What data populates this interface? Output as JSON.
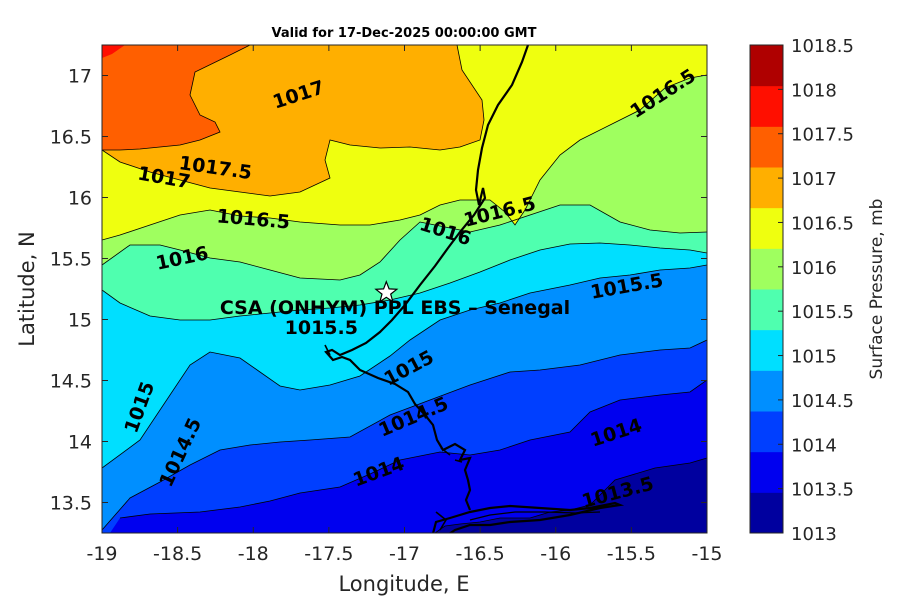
{
  "title": "Valid for 17-Dec-2025 00:00:00 GMT",
  "station_label": "CSA (ONHYM) PPL EBS  – Senegal",
  "station_icon": "star-marker-icon",
  "chart_data": {
    "type": "filled-contour map",
    "title": "Valid for 17-Dec-2025 00:00:00 GMT",
    "xlabel": "Longitude, E",
    "ylabel": "Latitude, N",
    "xlim": [
      -19,
      -15
    ],
    "ylim": [
      13.25,
      17.25
    ],
    "x_ticks": [
      "-19",
      "-18.5",
      "-18",
      "-17.5",
      "-17",
      "-16.5",
      "-16",
      "-15.5",
      "-15"
    ],
    "y_ticks": [
      "13.5",
      "14",
      "14.5",
      "15",
      "15.5",
      "16",
      "16.5",
      "17"
    ],
    "colorbar": {
      "label": "Surface Pressure, mb",
      "ticks": [
        "1013",
        "1013.5",
        "1014",
        "1014.5",
        "1015",
        "1015.5",
        "1016",
        "1016.5",
        "1017",
        "1017.5",
        "1018",
        "1018.5"
      ],
      "colors": [
        "#00009f",
        "#0000ef",
        "#003fff",
        "#008fff",
        "#00dfff",
        "#4fffaf",
        "#9fff5f",
        "#efff0f",
        "#ffaf00",
        "#ff5f00",
        "#ff0f00",
        "#af0000"
      ]
    },
    "station": {
      "name": "CSA (ONHYM) PPL EBS  – Senegal",
      "lon": -17.12,
      "lat": 15.22
    },
    "contour_levels": [
      1013.5,
      1014,
      1014.5,
      1015,
      1015.5,
      1016,
      1016.5,
      1017,
      1017.5
    ],
    "contour_labels": [
      {
        "text": "1017",
        "lon": -17.7,
        "lat": 16.84,
        "angle": -18
      },
      {
        "text": "1017.5",
        "lon": -18.25,
        "lat": 16.24,
        "angle": 8
      },
      {
        "text": "1017",
        "lon": -18.59,
        "lat": 16.16,
        "angle": 10
      },
      {
        "text": "1016.5",
        "lon": -18.0,
        "lat": 15.82,
        "angle": 5
      },
      {
        "text": "1016",
        "lon": -18.47,
        "lat": 15.5,
        "angle": -12
      },
      {
        "text": "1016",
        "lon": -16.73,
        "lat": 15.72,
        "angle": 18
      },
      {
        "text": "1016.5",
        "lon": -16.37,
        "lat": 15.88,
        "angle": -14
      },
      {
        "text": "1016.5",
        "lon": -15.29,
        "lat": 16.85,
        "angle": -33
      },
      {
        "text": "1015.5",
        "lon": -15.53,
        "lat": 15.27,
        "angle": -10
      },
      {
        "text": "1015.5",
        "lon": -17.55,
        "lat": 14.93,
        "angle": 0
      },
      {
        "text": "1015",
        "lon": -16.97,
        "lat": 14.6,
        "angle": -28
      },
      {
        "text": "1015",
        "lon": -18.75,
        "lat": 14.28,
        "angle": -70
      },
      {
        "text": "1014.5",
        "lon": -16.94,
        "lat": 14.2,
        "angle": -23
      },
      {
        "text": "1014.5",
        "lon": -18.48,
        "lat": 13.91,
        "angle": -65
      },
      {
        "text": "1014",
        "lon": -15.6,
        "lat": 14.07,
        "angle": -18
      },
      {
        "text": "1014",
        "lon": -17.17,
        "lat": 13.75,
        "angle": -20
      },
      {
        "text": "1013.5",
        "lon": -15.59,
        "lat": 13.58,
        "angle": -15
      }
    ]
  }
}
